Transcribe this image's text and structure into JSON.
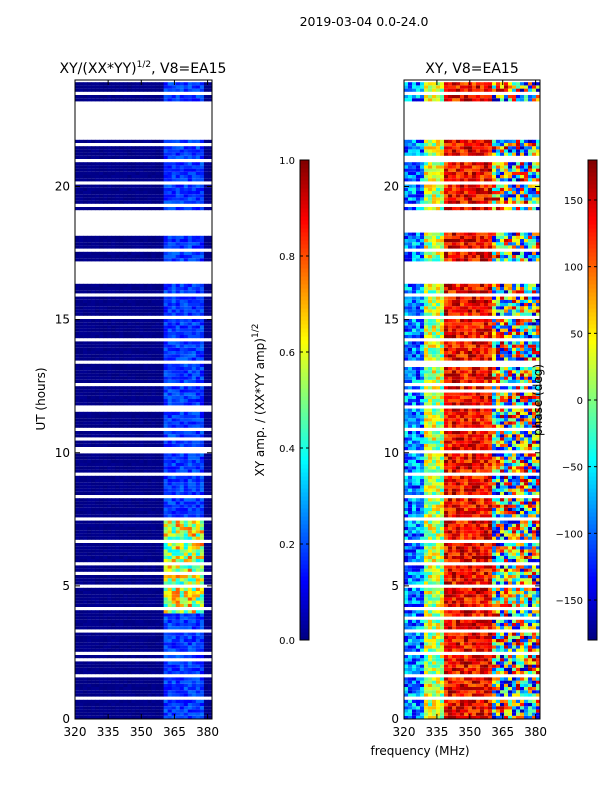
{
  "figure": {
    "suptitle": "2019-03-04 0.0-24.0",
    "xlabel_shared": "frequency (MHz)"
  },
  "colors": {
    "jet": [
      "#00007f",
      "#0000ff",
      "#007fff",
      "#00ffff",
      "#7fff7f",
      "#ffff00",
      "#ff7f00",
      "#ff0000",
      "#7f0000"
    ],
    "mask": "#ffffff"
  },
  "chart_data": [
    {
      "type": "heatmap",
      "title_main": "XY/(XX*YY)",
      "title_exp": "1/2",
      "title_rest": ", V8=EA15",
      "xlabel": "",
      "ylabel": "UT (hours)",
      "xlim": [
        320,
        382
      ],
      "ylim": [
        0,
        24
      ],
      "xticks": [
        320,
        335,
        350,
        365,
        380
      ],
      "yticks": [
        0,
        5,
        10,
        15,
        20
      ],
      "value_range": [
        0.0,
        1.0
      ],
      "colorbar": {
        "label_main": "XY amp. / (XX*YY amp)",
        "label_exp": "1/2",
        "ticks": [
          0.0,
          0.2,
          0.4,
          0.6,
          0.8,
          1.0
        ],
        "tick_labels": [
          "0.0",
          "0.2",
          "0.4",
          "0.6",
          "0.8",
          "1.0"
        ]
      },
      "flagged_time_ranges": [
        [
          16.4,
          17.2
        ],
        [
          18.3,
          19.1
        ],
        [
          21.7,
          23.2
        ]
      ],
      "pattern": "amplitude mostly near 0.0; slightly higher near 362-378 MHz; peaks ~0.6-0.8 around UT 5-7 h"
    },
    {
      "type": "heatmap",
      "title": "XY, V8=EA15",
      "xlabel": "",
      "ylabel": "",
      "xlim": [
        320,
        382
      ],
      "ylim": [
        0,
        24
      ],
      "xticks": [
        320,
        335,
        350,
        365,
        380
      ],
      "yticks": [
        0,
        5,
        10,
        15,
        20
      ],
      "value_range": [
        -180,
        180
      ],
      "colorbar": {
        "label": "phase (deg)",
        "ticks": [
          -150,
          -100,
          -50,
          0,
          50,
          100,
          150
        ],
        "tick_labels": [
          "−150",
          "−100",
          "−50",
          "0",
          "50",
          "100",
          "150"
        ]
      },
      "flagged_time_ranges": [
        [
          16.4,
          17.2
        ],
        [
          18.3,
          19.1
        ],
        [
          21.7,
          23.2
        ]
      ],
      "pattern": "phase ~ -150 to -100 deg near 320-330 MHz, ~100-180 deg over 340-360 MHz, mixed phases above 362 MHz"
    }
  ]
}
